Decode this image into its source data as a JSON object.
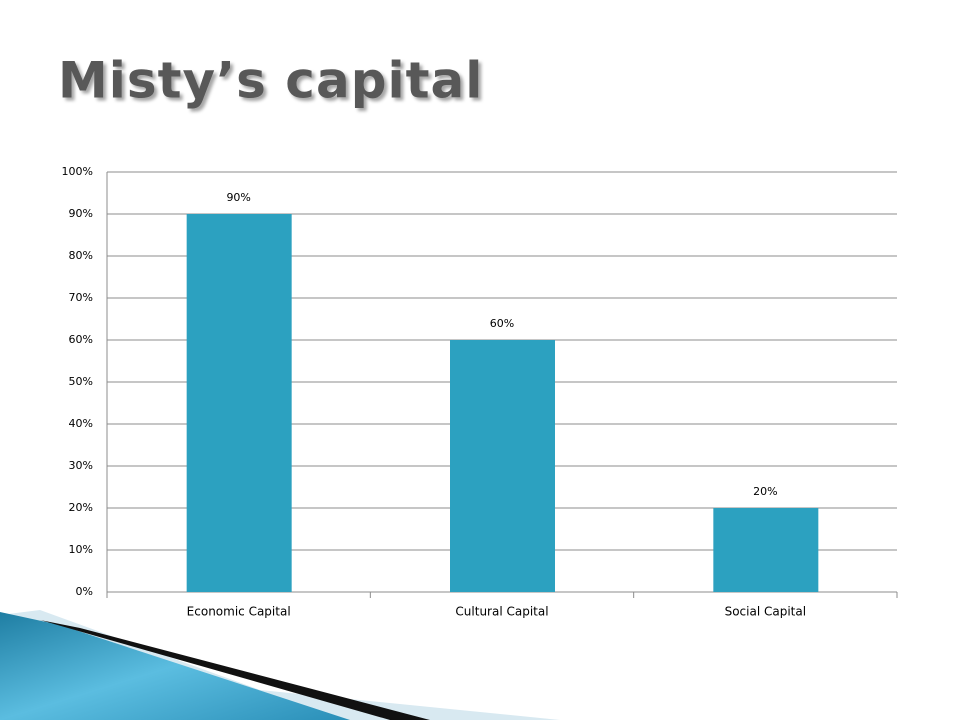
{
  "chart_data": {
    "type": "bar",
    "title": "Misty’s capital",
    "categories": [
      "Economic Capital",
      "Cultural Capital",
      "Social Capital"
    ],
    "values": [
      90,
      60,
      20
    ],
    "value_labels": [
      "90%",
      "60%",
      "20%"
    ],
    "color": "#2ca1c0",
    "ylim": [
      0,
      100
    ],
    "yticks": [
      {
        "value": 0,
        "label": "0%"
      },
      {
        "value": 10,
        "label": "10%"
      },
      {
        "value": 20,
        "label": "20%"
      },
      {
        "value": 30,
        "label": "30%"
      },
      {
        "value": 40,
        "label": "40%"
      },
      {
        "value": 50,
        "label": "50%"
      },
      {
        "value": 60,
        "label": "60%"
      },
      {
        "value": 70,
        "label": "70%"
      },
      {
        "value": 80,
        "label": "80%"
      },
      {
        "value": 90,
        "label": "90%"
      },
      {
        "value": 100,
        "label": "100%"
      }
    ],
    "grid": true
  }
}
